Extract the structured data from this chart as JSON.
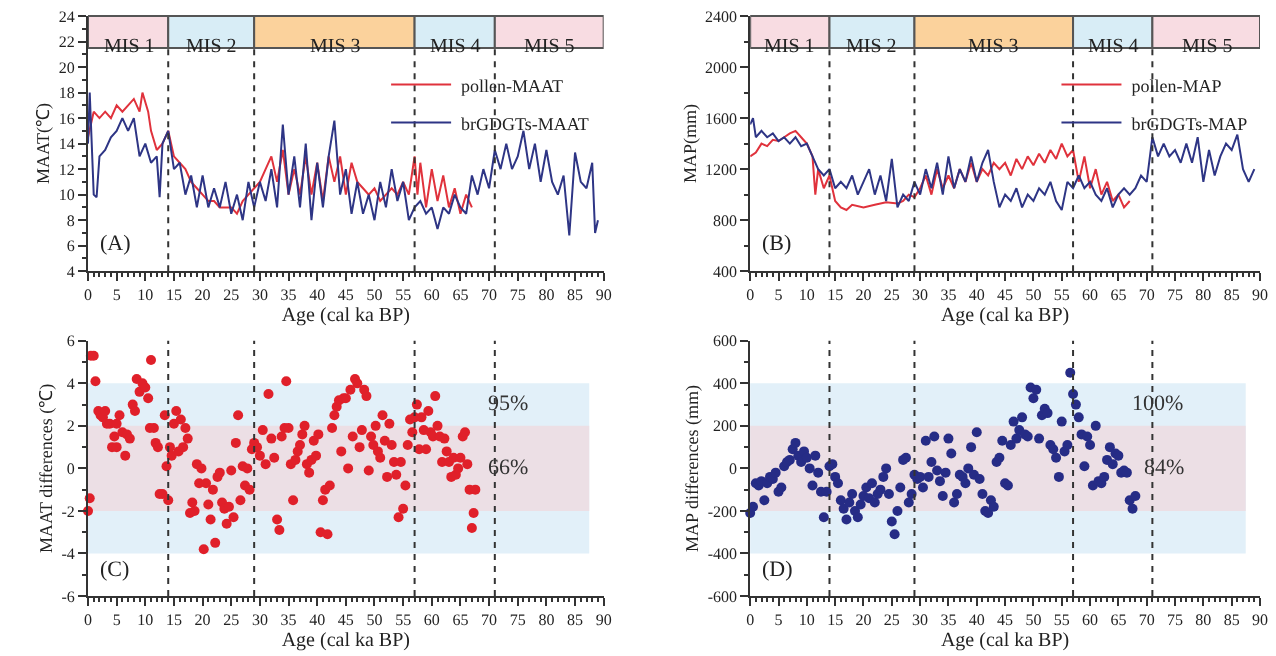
{
  "chart_data": [
    {
      "type": "line",
      "xlabel": "Age (cal ka BP)",
      "ylabel": "MAAT(℃)",
      "xlim": [
        0,
        90
      ],
      "xticks": [
        0,
        5,
        10,
        15,
        20,
        25,
        30,
        35,
        40,
        45,
        50,
        55,
        60,
        65,
        70,
        75,
        80,
        85,
        90
      ],
      "ylim": [
        4,
        24
      ],
      "yticks": [
        4,
        6,
        8,
        10,
        12,
        14,
        16,
        18,
        20,
        22,
        24
      ],
      "legend": "top right",
      "grid": false,
      "annotations": [
        "(A)"
      ],
      "series": [
        {
          "name": "pollen-MAAT",
          "color": "#e0323c",
          "x": [
            0,
            1,
            2,
            3,
            4,
            5,
            6,
            7,
            8,
            9,
            9.5,
            10.5,
            11,
            12,
            13,
            14,
            15,
            16,
            17,
            18,
            19,
            20,
            21,
            22,
            23,
            24,
            25,
            26,
            27,
            28,
            29,
            30,
            31,
            32,
            33,
            34,
            35,
            36,
            37,
            38,
            39,
            40,
            41,
            42,
            43,
            44,
            45,
            46,
            47,
            48,
            49,
            50,
            51,
            52,
            53,
            54,
            55,
            56,
            57,
            57.5,
            58,
            59,
            60,
            61,
            62,
            63,
            64,
            65,
            66,
            67
          ],
          "values": [
            14.5,
            16.5,
            16,
            16.5,
            16,
            17,
            16.5,
            17,
            17.5,
            16.5,
            18,
            16.5,
            15,
            13.5,
            14,
            15,
            13,
            12.5,
            12,
            11,
            10.5,
            10,
            9.5,
            9.5,
            9,
            9,
            9,
            8.5,
            9.5,
            10,
            10.5,
            11,
            12,
            13,
            11,
            13.5,
            10,
            12,
            10,
            13,
            10,
            12.5,
            9.5,
            13,
            11,
            13,
            10,
            12.5,
            11,
            10.5,
            10,
            10.5,
            9.5,
            10,
            10.5,
            10,
            11,
            10,
            13,
            10,
            12.5,
            9,
            12,
            9.5,
            11.5,
            9,
            10.5,
            8.5,
            10,
            9
          ]
        },
        {
          "name": "brGDGTs-MAAT",
          "color": "#2e3585",
          "x": [
            0,
            0.3,
            1,
            1.5,
            2,
            3,
            4,
            5,
            6,
            7,
            8,
            9,
            10,
            11,
            12,
            12.5,
            13,
            14,
            15,
            16,
            17,
            18,
            19,
            20,
            21,
            22,
            23,
            24,
            25,
            26,
            27,
            28,
            29,
            30,
            31,
            32,
            33,
            34,
            35,
            36,
            37,
            38,
            39,
            40,
            41,
            42,
            43,
            44,
            45,
            46,
            47,
            48,
            49,
            50,
            51,
            52,
            53,
            54,
            55,
            56,
            57,
            58,
            59,
            60,
            61,
            62,
            63,
            64,
            65,
            66,
            67,
            68,
            69,
            70,
            71,
            72,
            73,
            74,
            75,
            76,
            77,
            78,
            79,
            80,
            81,
            82,
            83,
            84,
            85,
            86,
            87,
            88,
            88.5,
            89
          ],
          "values": [
            14,
            18,
            10,
            9.8,
            13,
            13.5,
            14.5,
            15,
            16,
            15,
            16,
            13,
            14,
            12.5,
            13,
            9.8,
            14,
            15,
            12,
            12.5,
            10,
            11.5,
            9,
            11.5,
            9,
            10.5,
            9,
            11,
            8.5,
            10,
            8,
            11,
            9,
            11,
            9.5,
            12,
            9,
            15.5,
            10,
            13,
            9,
            14,
            8,
            12.5,
            9,
            13,
            15.8,
            10,
            12,
            8.5,
            11,
            8.5,
            10,
            8,
            11,
            9,
            12,
            9.5,
            11,
            8,
            9,
            9.5,
            8.5,
            9,
            7.3,
            9,
            8.5,
            10,
            9,
            8.5,
            11.5,
            10,
            12,
            10.5,
            13.5,
            12,
            14,
            12,
            13,
            15,
            12,
            14,
            11,
            13.5,
            11,
            10,
            11.5,
            6.8,
            13.3,
            11,
            10.5,
            12.5,
            7,
            8
          ]
        }
      ],
      "bands": [
        {
          "axis": "x",
          "from": 0,
          "to": 14,
          "label": "MIS 1",
          "color": "#f8dce2"
        },
        {
          "axis": "x",
          "from": 14,
          "to": 29,
          "label": "MIS 2",
          "color": "#d8edf6"
        },
        {
          "axis": "x",
          "from": 29,
          "to": 57,
          "label": "MIS 3",
          "color": "#fbd29c"
        },
        {
          "axis": "x",
          "from": 57,
          "to": 71,
          "label": "MIS 4",
          "color": "#d8edf6"
        },
        {
          "axis": "x",
          "from": 71,
          "to": 90,
          "label": "MIS 5",
          "color": "#f8dce2"
        }
      ],
      "ref_lines": [
        {
          "axis": "x",
          "value": 14,
          "line_style": "dotted"
        },
        {
          "axis": "x",
          "value": 29,
          "line_style": "dotted"
        },
        {
          "axis": "x",
          "value": 57,
          "line_style": "dotted"
        },
        {
          "axis": "x",
          "value": 71,
          "line_style": "dotted"
        }
      ]
    },
    {
      "type": "line",
      "xlabel": "Age (cal ka BP)",
      "ylabel": "MAP(mm)",
      "xlim": [
        0,
        90
      ],
      "xticks": [
        0,
        5,
        10,
        15,
        20,
        25,
        30,
        35,
        40,
        45,
        50,
        55,
        60,
        65,
        70,
        75,
        80,
        85,
        90
      ],
      "ylim": [
        400,
        2400
      ],
      "yticks": [
        400,
        800,
        1200,
        1600,
        2000,
        2400
      ],
      "legend": "top right",
      "grid": false,
      "annotations": [
        "(B)"
      ],
      "series": [
        {
          "name": "pollen-MAP",
          "color": "#e0323c",
          "x": [
            0,
            1,
            2,
            3,
            4,
            5,
            6,
            7,
            8,
            9,
            10,
            11,
            11.5,
            12,
            13,
            14,
            15,
            16,
            17,
            18,
            20,
            22,
            24,
            26,
            27,
            28,
            29,
            30,
            31,
            32,
            33,
            34,
            35,
            36,
            37,
            38,
            39,
            40,
            41,
            42,
            43,
            44,
            45,
            46,
            47,
            48,
            49,
            50,
            51,
            52,
            53,
            54,
            55,
            56,
            57,
            58,
            59,
            60,
            61,
            62,
            63,
            64,
            65,
            66,
            67
          ],
          "values": [
            1300,
            1330,
            1400,
            1380,
            1430,
            1420,
            1450,
            1480,
            1500,
            1450,
            1400,
            1300,
            1000,
            1200,
            1050,
            1150,
            950,
            900,
            880,
            920,
            900,
            920,
            940,
            930,
            950,
            1000,
            980,
            1050,
            1150,
            1000,
            1200,
            1050,
            1150,
            1050,
            1200,
            1100,
            1250,
            1100,
            1200,
            1150,
            1250,
            1200,
            1250,
            1150,
            1280,
            1200,
            1300,
            1230,
            1320,
            1250,
            1350,
            1280,
            1400,
            1300,
            1350,
            1100,
            1300,
            1050,
            1200,
            1000,
            1100,
            950,
            1000,
            900,
            950
          ]
        },
        {
          "name": "brGDGTs-MAP",
          "color": "#2e3585",
          "x": [
            0,
            0.5,
            1,
            2,
            3,
            4,
            5,
            6,
            7,
            8,
            9,
            10,
            11,
            12,
            13,
            14,
            15,
            16,
            17,
            18,
            19,
            20,
            21,
            22,
            23,
            24,
            25,
            26,
            27,
            28,
            29,
            30,
            31,
            32,
            33,
            34,
            35,
            36,
            37,
            38,
            39,
            40,
            41,
            42,
            43,
            44,
            45,
            46,
            47,
            48,
            49,
            50,
            51,
            52,
            53,
            54,
            55,
            56,
            57,
            58,
            59,
            60,
            61,
            62,
            63,
            64,
            65,
            66,
            67,
            68,
            69,
            70,
            71,
            72,
            73,
            74,
            75,
            76,
            77,
            78,
            79,
            80,
            81,
            82,
            83,
            84,
            85,
            86,
            87,
            88,
            89
          ],
          "values": [
            1550,
            1600,
            1450,
            1500,
            1450,
            1480,
            1420,
            1450,
            1400,
            1450,
            1380,
            1400,
            1300,
            1200,
            1150,
            1200,
            1050,
            1100,
            1050,
            1150,
            1000,
            1100,
            1200,
            1000,
            1150,
            950,
            1280,
            900,
            1000,
            950,
            1100,
            1000,
            1200,
            1050,
            1250,
            1000,
            1300,
            1050,
            1200,
            1100,
            1300,
            1100,
            1250,
            1350,
            1100,
            900,
            1000,
            950,
            1050,
            900,
            1000,
            950,
            1050,
            1000,
            1100,
            950,
            880,
            1100,
            1050,
            1150,
            1050,
            1100,
            1000,
            950,
            1050,
            900,
            1000,
            1050,
            1000,
            1050,
            1150,
            1100,
            1450,
            1300,
            1400,
            1300,
            1350,
            1250,
            1400,
            1250,
            1450,
            1100,
            1350,
            1150,
            1300,
            1400,
            1350,
            1470,
            1200,
            1100,
            1200
          ]
        }
      ],
      "bands": [
        {
          "axis": "x",
          "from": 0,
          "to": 14,
          "label": "MIS 1",
          "color": "#f8dce2"
        },
        {
          "axis": "x",
          "from": 14,
          "to": 29,
          "label": "MIS 2",
          "color": "#d8edf6"
        },
        {
          "axis": "x",
          "from": 29,
          "to": 57,
          "label": "MIS 3",
          "color": "#fbd29c"
        },
        {
          "axis": "x",
          "from": 57,
          "to": 71,
          "label": "MIS 4",
          "color": "#d8edf6"
        },
        {
          "axis": "x",
          "from": 71,
          "to": 90,
          "label": "MIS 5",
          "color": "#f8dce2"
        }
      ],
      "ref_lines": [
        {
          "axis": "x",
          "value": 14,
          "line_style": "dotted"
        },
        {
          "axis": "x",
          "value": 29,
          "line_style": "dotted"
        },
        {
          "axis": "x",
          "value": 57,
          "line_style": "dotted"
        },
        {
          "axis": "x",
          "value": 71,
          "line_style": "dotted"
        }
      ]
    },
    {
      "type": "scatter",
      "xlabel": "Age (cal ka BP)",
      "ylabel": "MAAT differences (℃)",
      "xlim": [
        0,
        90
      ],
      "xticks": [
        0,
        5,
        10,
        15,
        20,
        25,
        30,
        35,
        40,
        45,
        50,
        55,
        60,
        65,
        70,
        75,
        80,
        85,
        90
      ],
      "ylim": [
        -6,
        6
      ],
      "yticks": [
        -6,
        -4,
        -2,
        0,
        2,
        4,
        6
      ],
      "marker": "circle",
      "grid": false,
      "annotations": [
        "(C)"
      ],
      "series": [
        {
          "color": "#e0202a",
          "x": [
            0,
            0.3,
            0.5,
            1,
            1.3,
            1.8,
            2.2,
            2.6,
            3,
            3.3,
            3.8,
            4.2,
            4.6,
            5,
            5,
            5.5,
            6,
            6.5,
            6.8,
            7.3,
            7.8,
            8.2,
            8.5,
            9,
            9.5,
            10,
            10.5,
            10.8,
            11,
            11.5,
            11.8,
            12.2,
            12.5,
            13,
            13.4,
            13.7,
            14,
            14.3,
            14.6,
            15,
            15.4,
            15.8,
            16.2,
            16.6,
            17,
            17.4,
            17.8,
            18.2,
            18.6,
            19,
            19.4,
            19.8,
            20.2,
            20.6,
            21,
            21.4,
            21.8,
            22.2,
            22.6,
            23,
            23.4,
            23.8,
            24.2,
            24.6,
            25,
            25.4,
            25.8,
            26.2,
            26.6,
            27,
            27.4,
            27.8,
            28.2,
            28.6,
            29,
            29.5,
            30,
            30.5,
            31,
            31.5,
            32,
            32.5,
            33,
            33.4,
            33.8,
            34.3,
            34.6,
            35,
            35.4,
            35.8,
            36.2,
            36.6,
            37,
            37.4,
            37.8,
            38.2,
            38.6,
            39,
            39.4,
            39.8,
            40.2,
            40.6,
            41,
            41.4,
            41.8,
            42.2,
            42.6,
            43,
            43.4,
            43.8,
            44.2,
            44.6,
            45,
            45.4,
            45.8,
            46.2,
            46.6,
            47,
            47.4,
            47.8,
            48.2,
            48.6,
            49,
            49.4,
            49.8,
            50.2,
            50.6,
            51,
            51.4,
            51.8,
            52.2,
            52.6,
            53,
            53.4,
            53.8,
            54.2,
            54.6,
            55,
            55.4,
            55.8,
            56.2,
            56.6,
            57,
            57.4,
            57.8,
            58.2,
            58.6,
            59,
            59.4,
            59.8,
            60.2,
            60.6,
            61,
            61.4,
            61.8,
            62.2,
            62.6,
            63,
            63.4,
            63.8,
            64.2,
            64.6,
            65,
            65.4,
            65.8,
            66.2,
            66.6,
            67,
            67.3,
            67.6
          ],
          "values": [
            -2,
            -1.4,
            5.3,
            5.3,
            4.1,
            2.7,
            2.5,
            2.4,
            2.7,
            2.1,
            2.1,
            1,
            1.5,
            2.1,
            1,
            2.5,
            1.7,
            0.6,
            1.6,
            1.4,
            3,
            2.7,
            4.2,
            3.6,
            4,
            3.8,
            3.3,
            1.9,
            5.1,
            1.9,
            1.2,
            1,
            -1.2,
            -1.2,
            2.5,
            0.1,
            -1.5,
            1,
            0.6,
            2.1,
            2.7,
            0.8,
            2.3,
            1,
            1.9,
            1.4,
            -2.1,
            -1.6,
            -2,
            0.2,
            -0.7,
            0,
            -3.8,
            -0.7,
            -1.7,
            -2.4,
            -1,
            -3.5,
            -0.4,
            -0.2,
            -1.6,
            -1.9,
            -2.6,
            -1.8,
            -0.1,
            -2.3,
            1.2,
            2.5,
            -1.5,
            0.1,
            -0.8,
            0,
            -1,
            0.9,
            1.2,
            1,
            0.6,
            1.8,
            0.2,
            3.5,
            1.4,
            0.5,
            -2.4,
            -2.9,
            1.5,
            1.9,
            4.1,
            1.9,
            0.2,
            -1.5,
            0.4,
            0.8,
            1.1,
            1.6,
            2,
            0.2,
            -0.2,
            0.4,
            1.3,
            0.6,
            1.6,
            -3,
            -1.5,
            -1,
            -3.1,
            -0.8,
            1.9,
            2.5,
            2.9,
            3.2,
            0.8,
            3.3,
            3.3,
            0,
            3.7,
            1.5,
            4.2,
            4,
            1,
            1.8,
            3.7,
            3.4,
            -0.1,
            1.5,
            1.1,
            2,
            0.8,
            0.5,
            2.5,
            1.3,
            -0.4,
            2.1,
            1.1,
            0.3,
            -0.3,
            -2.3,
            0.3,
            -1.9,
            -0.8,
            1.1,
            2.3,
            1.7,
            2.4,
            3,
            0.9,
            2.4,
            1.8,
            0.9,
            2.7,
            1.7,
            1.5,
            3.4,
            2,
            1.5,
            0.3,
            1.4,
            0.8,
            0.3,
            -0.4,
            0.5,
            -0.3,
            0,
            0.5,
            1.5,
            1.7,
            0.2,
            -1,
            -2.8,
            -2.1,
            -1
          ]
        }
      ],
      "bands": [
        {
          "axis": "y",
          "from": -4,
          "to": 4,
          "label": "95%",
          "color": "#e2f0f9"
        },
        {
          "axis": "y",
          "from": -2,
          "to": 2,
          "label": "66%",
          "color": "#ecdfe5"
        }
      ],
      "ref_lines": [
        {
          "axis": "x",
          "value": 14,
          "line_style": "dotted"
        },
        {
          "axis": "x",
          "value": 29,
          "line_style": "dotted"
        },
        {
          "axis": "x",
          "value": 57,
          "line_style": "dotted"
        },
        {
          "axis": "x",
          "value": 71,
          "line_style": "dotted"
        }
      ]
    },
    {
      "type": "scatter",
      "xlabel": "Age (cal ka BP)",
      "ylabel": "MAP differences (mm)",
      "xlim": [
        0,
        90
      ],
      "xticks": [
        0,
        5,
        10,
        15,
        20,
        25,
        30,
        35,
        40,
        45,
        50,
        55,
        60,
        65,
        70,
        75,
        80,
        85,
        90
      ],
      "ylim": [
        -600,
        600
      ],
      "yticks": [
        -600,
        -400,
        -200,
        0,
        200,
        400,
        600
      ],
      "marker": "circle",
      "grid": false,
      "annotations": [
        "(D)"
      ],
      "series": [
        {
          "color": "#262c86",
          "x": [
            0,
            0.5,
            1,
            1.5,
            2,
            2.5,
            3,
            3.5,
            4,
            4.5,
            5,
            5.5,
            6,
            6.5,
            7,
            7.5,
            8,
            8.5,
            9,
            9.5,
            10,
            10.5,
            11,
            11.5,
            12,
            12.5,
            13,
            13.5,
            14,
            14.5,
            15,
            15.5,
            16,
            16.5,
            17,
            17.5,
            18,
            18.5,
            19,
            19.5,
            20,
            20.5,
            21,
            21.5,
            22,
            22.5,
            23,
            23.5,
            24,
            24.5,
            25,
            25.5,
            26,
            26.5,
            27,
            27.5,
            28,
            28.5,
            29,
            29.5,
            30,
            30.5,
            31,
            31.5,
            32,
            32.5,
            33,
            33.5,
            34,
            34.5,
            35,
            35.5,
            36,
            36.5,
            37,
            37.5,
            38,
            38.5,
            39,
            39.5,
            40,
            40.5,
            41,
            41.5,
            42,
            42.5,
            43,
            43.5,
            44,
            44.5,
            45,
            45.5,
            46,
            46.5,
            47,
            47.5,
            48,
            48.5,
            49,
            49.5,
            50,
            50.5,
            51,
            51.5,
            52,
            52.5,
            53,
            53.5,
            54,
            54.5,
            55,
            55.5,
            56,
            56.5,
            57,
            57.5,
            58,
            58.5,
            59,
            59.5,
            60,
            60.5,
            61,
            61.5,
            62,
            62.5,
            63,
            63.5,
            64,
            64.5,
            65,
            65.5,
            66,
            66.5,
            67,
            67.5,
            68
          ],
          "values": [
            -210,
            -180,
            -70,
            -80,
            -60,
            -150,
            -70,
            -40,
            -50,
            -20,
            -110,
            -90,
            10,
            30,
            40,
            90,
            120,
            60,
            30,
            80,
            50,
            0,
            -80,
            60,
            -20,
            -110,
            -230,
            -110,
            10,
            20,
            -40,
            -70,
            -150,
            -190,
            -240,
            -160,
            -120,
            -200,
            -230,
            -170,
            -130,
            -90,
            -140,
            -70,
            -160,
            -120,
            -100,
            -40,
            0,
            -120,
            -250,
            -310,
            -200,
            -90,
            40,
            50,
            -160,
            -120,
            -30,
            -50,
            -40,
            -90,
            130,
            -40,
            30,
            150,
            -10,
            -60,
            -130,
            -20,
            140,
            70,
            -160,
            -120,
            -30,
            -40,
            -70,
            0,
            100,
            -30,
            170,
            -50,
            -120,
            -200,
            -210,
            -150,
            -180,
            30,
            50,
            130,
            -70,
            -80,
            110,
            220,
            140,
            180,
            240,
            160,
            150,
            380,
            330,
            370,
            140,
            250,
            280,
            260,
            110,
            90,
            50,
            -40,
            220,
            80,
            110,
            450,
            350,
            300,
            240,
            160,
            10,
            150,
            110,
            -80,
            200,
            -60,
            -70,
            -40,
            40,
            100,
            20,
            70,
            60,
            -20,
            -10,
            -20,
            -150,
            -190,
            -130
          ]
        }
      ],
      "bands": [
        {
          "axis": "y",
          "from": -400,
          "to": 400,
          "label": "100%",
          "color": "#e2f0f9"
        },
        {
          "axis": "y",
          "from": -200,
          "to": 200,
          "label": "84%",
          "color": "#ecdfe5"
        }
      ],
      "ref_lines": [
        {
          "axis": "x",
          "value": 14,
          "line_style": "dotted"
        },
        {
          "axis": "x",
          "value": 29,
          "line_style": "dotted"
        },
        {
          "axis": "x",
          "value": 57,
          "line_style": "dotted"
        },
        {
          "axis": "x",
          "value": 71,
          "line_style": "dotted"
        }
      ]
    }
  ]
}
